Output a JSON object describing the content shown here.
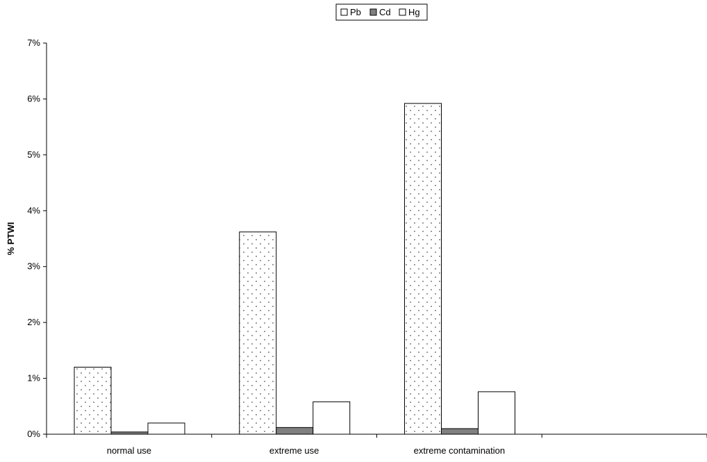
{
  "chart_data": {
    "type": "bar",
    "title": "",
    "xlabel": "",
    "ylabel": "% PTWI",
    "ylim": [
      0,
      7
    ],
    "y_ticks": [
      0,
      1,
      2,
      3,
      4,
      5,
      6,
      7
    ],
    "y_tick_labels": [
      "0%",
      "1%",
      "2%",
      "3%",
      "4%",
      "5%",
      "6%",
      "7%"
    ],
    "categories": [
      "normal use",
      "extreme use",
      "extreme contamination",
      ""
    ],
    "series": [
      {
        "name": "Pb",
        "values": [
          1.2,
          3.62,
          5.92,
          null
        ],
        "fill": "dots",
        "color": "#ffffff"
      },
      {
        "name": "Cd",
        "values": [
          0.04,
          0.12,
          0.1,
          null
        ],
        "fill": "solid",
        "color": "#808080"
      },
      {
        "name": "Hg",
        "values": [
          0.2,
          0.58,
          0.76,
          null
        ],
        "fill": "solid",
        "color": "#ffffff"
      }
    ],
    "legend_position": "top-center",
    "grid": false
  }
}
